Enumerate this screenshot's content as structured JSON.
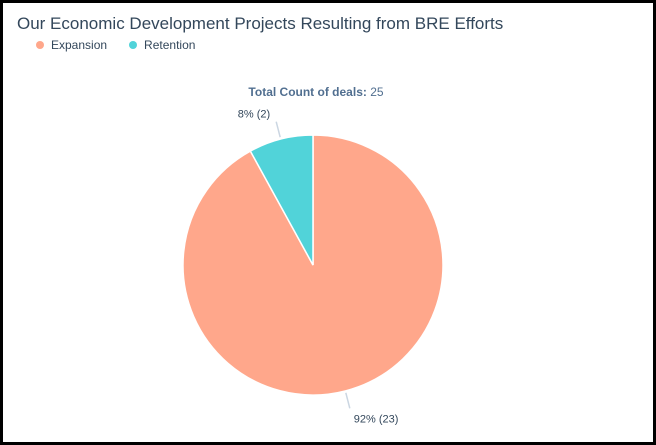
{
  "chart_data": {
    "type": "pie",
    "title": "Our Economic Development Projects Resulting from BRE Efforts",
    "total_label": "Total Count of deals:",
    "total_value": "25",
    "slices": [
      {
        "name": "Expansion",
        "value": 23,
        "percent": 92,
        "label": "92% (23)",
        "color": "#ffa78b"
      },
      {
        "name": "Retention",
        "value": 2,
        "percent": 8,
        "label": "8% (2)",
        "color": "#51d3d9"
      }
    ],
    "legend_placement": "top-left"
  },
  "colors": {
    "text": "#33475b",
    "leader_line": "#cbd6e2"
  }
}
